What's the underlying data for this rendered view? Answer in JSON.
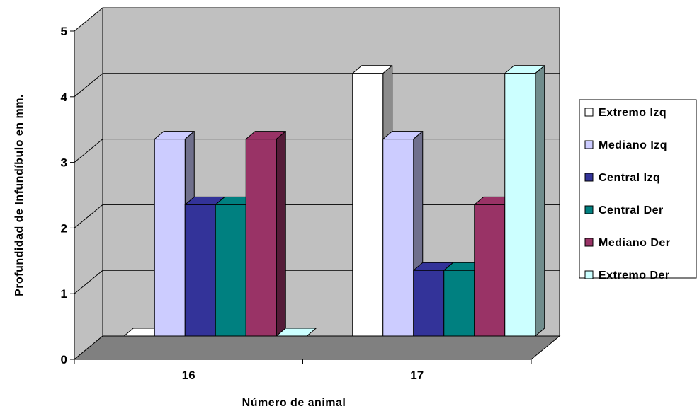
{
  "chart_data": {
    "type": "bar",
    "title": "",
    "xlabel": "Número de animal",
    "ylabel": "Profundidad de Infundíbulo en mm.",
    "categories": [
      "16",
      "17"
    ],
    "ylim": [
      0,
      5
    ],
    "yticks": [
      "0",
      "1",
      "2",
      "3",
      "4",
      "5"
    ],
    "grid": true,
    "legend_position": "right",
    "series": [
      {
        "name": "Extremo Izq",
        "values": [
          0,
          4
        ],
        "color": "#FFFFFF"
      },
      {
        "name": "Mediano Izq",
        "values": [
          3,
          3
        ],
        "color": "#CCCCFF"
      },
      {
        "name": "Central Izq",
        "values": [
          2,
          1
        ],
        "color": "#333399"
      },
      {
        "name": "Central Der",
        "values": [
          2,
          1
        ],
        "color": "#008080"
      },
      {
        "name": "Mediano Der",
        "values": [
          3,
          2
        ],
        "color": "#993366"
      },
      {
        "name": "Extremo Der",
        "values": [
          0,
          4
        ],
        "color": "#CCFFFF"
      }
    ]
  }
}
